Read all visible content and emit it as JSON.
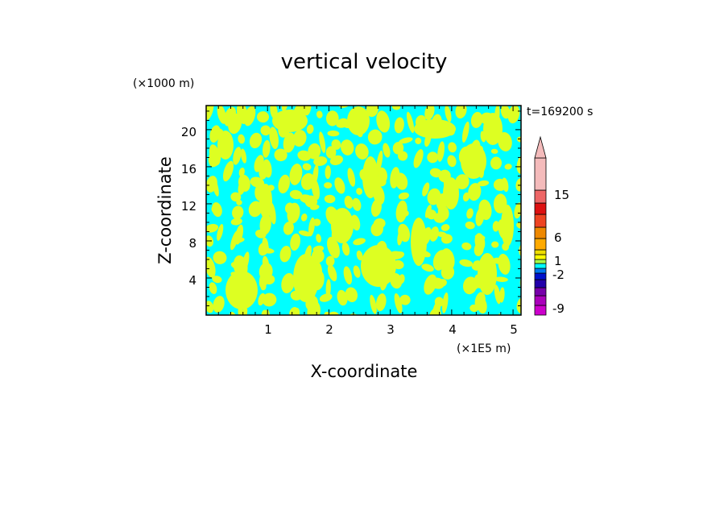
{
  "chart_data": {
    "type": "heatmap",
    "title": "vertical velocity",
    "xlabel": "X-coordinate",
    "ylabel": "Z-coordinate",
    "x_unit": "(×1E5 m)",
    "y_unit": "(×1000 m)",
    "time_label": "t=169200 s",
    "xlim": [
      0,
      5.13
    ],
    "ylim": [
      0,
      22.6
    ],
    "x_ticks": [
      "1",
      "2",
      "3",
      "4",
      "5"
    ],
    "y_ticks": [
      "4",
      "8",
      "12",
      "16",
      "20"
    ],
    "x_tick_values": [
      1,
      2,
      3,
      4,
      5
    ],
    "y_tick_values": [
      4,
      8,
      12,
      16,
      20
    ],
    "field_colors": {
      "negative": "#00FFFF",
      "positive": "#DDFF22"
    },
    "colorbar": {
      "labels": [
        "15",
        "6",
        "1",
        "-2",
        "-9"
      ],
      "label_values": [
        15,
        6,
        1,
        -2,
        -9
      ],
      "levels": [
        -12,
        -9,
        -6,
        -4,
        -2,
        -1,
        -0.5,
        0,
        0.5,
        1,
        2,
        4,
        6,
        9,
        12,
        15,
        18
      ],
      "colors": [
        "#CC00CC",
        "#AA00BB",
        "#7700AA",
        "#2200AA",
        "#0011CC",
        "#0077EE",
        "#00FFFF",
        "#AAFF44",
        "#FFFF00",
        "#EEDD00",
        "#FFAA00",
        "#EE8800",
        "#EE4422",
        "#DD1111",
        "#EE6666",
        "#F4BBBB"
      ],
      "extend": "max"
    }
  }
}
